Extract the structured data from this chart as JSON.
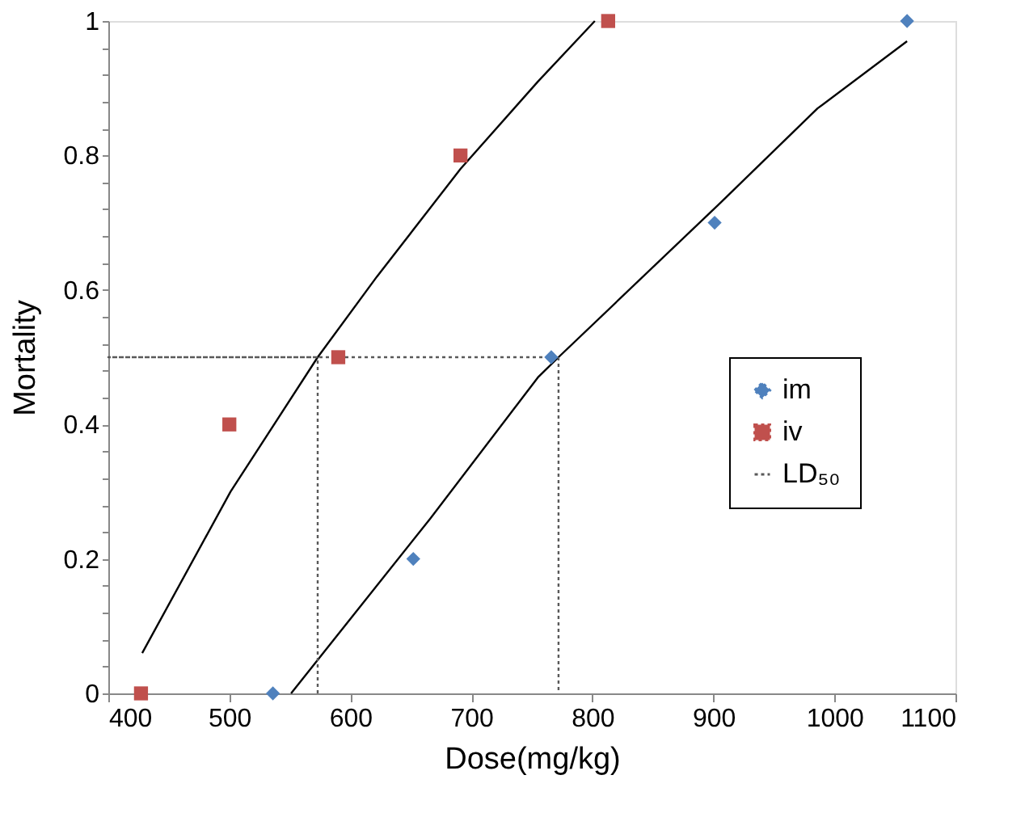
{
  "chart_data": {
    "type": "scatter",
    "xlabel": "Dose(mg/kg)",
    "ylabel": "Mortality",
    "xlim": [
      400,
      1100
    ],
    "xticks": [
      400,
      500,
      600,
      700,
      800,
      900,
      1000,
      1100
    ],
    "ylim": [
      0,
      1
    ],
    "yticks": [
      0,
      {
        "value": 0.04,
        "label": null
      },
      {
        "value": 0.08,
        "label": null
      },
      {
        "value": 0.12,
        "label": null
      },
      {
        "value": 0.16,
        "label": null
      },
      0.2,
      {
        "value": 0.24,
        "label": null
      },
      {
        "value": 0.28,
        "label": null
      },
      {
        "value": 0.32,
        "label": null
      },
      {
        "value": 0.36,
        "label": null
      },
      0.4,
      {
        "value": 0.44,
        "label": null
      },
      {
        "value": 0.48,
        "label": null
      },
      {
        "value": 0.52,
        "label": null
      },
      {
        "value": 0.56,
        "label": null
      },
      0.6,
      {
        "value": 0.64,
        "label": null
      },
      {
        "value": 0.68,
        "label": null
      },
      {
        "value": 0.72,
        "label": null
      },
      {
        "value": 0.76,
        "label": null
      },
      0.8,
      {
        "value": 0.84,
        "label": null
      },
      {
        "value": 0.88,
        "label": null
      },
      {
        "value": 0.92,
        "label": null
      },
      {
        "value": 0.96,
        "label": null
      },
      1
    ],
    "grid": false,
    "legend": "right",
    "series": [
      {
        "name": "im",
        "type": "scatter",
        "marker": "diamond",
        "color": "#4f81bd",
        "x": [
          536,
          652,
          766,
          901,
          1060
        ],
        "values": [
          0,
          0.2,
          0.5,
          0.7,
          1
        ]
      },
      {
        "name": "iv",
        "type": "scatter",
        "marker": "square",
        "color": "#c0504d",
        "x": [
          427,
          500,
          590,
          691,
          813
        ],
        "values": [
          0,
          0.4,
          0.5,
          0.8,
          1
        ]
      },
      {
        "type": "line",
        "line_style": "solid",
        "color": "#000000",
        "x": [
          428,
          501,
          573,
          622,
          691,
          755,
          802
        ],
        "values": [
          0.06,
          0.3,
          0.5,
          0.62,
          0.78,
          0.91,
          1
        ]
      },
      {
        "type": "line",
        "line_style": "solid",
        "color": "#000000",
        "x": [
          551,
          666,
          755,
          772,
          906,
          986,
          1060
        ],
        "values": [
          0,
          0.26,
          0.47,
          0.5,
          0.73,
          0.87,
          0.97
        ]
      },
      {
        "name": "LD₅₀",
        "type": "line",
        "line_style": "dotted",
        "color": "#595959",
        "x": [
          573,
          573,
          400,
          772,
          772
        ],
        "values": [
          0,
          0.5,
          0.5,
          0.5,
          0
        ]
      }
    ]
  }
}
